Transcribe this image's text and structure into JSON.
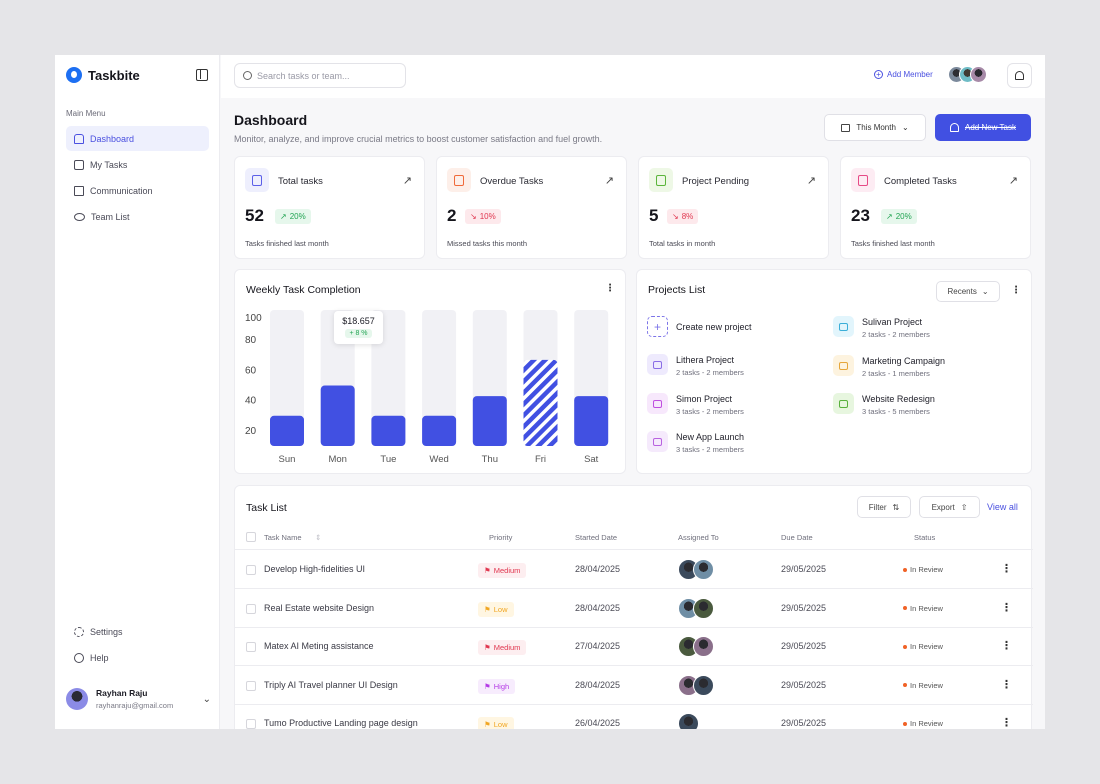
{
  "app": {
    "name": "Taskbite"
  },
  "sidebar": {
    "menu_label": "Main Menu",
    "items": [
      {
        "label": "Dashboard",
        "icon": "home-icon",
        "active": true
      },
      {
        "label": "My Tasks",
        "icon": "note-icon",
        "active": false
      },
      {
        "label": "Communication",
        "icon": "mail-icon",
        "active": false
      },
      {
        "label": "Team List",
        "icon": "users-icon",
        "active": false
      }
    ],
    "bottom_items": [
      {
        "label": "Settings",
        "icon": "gear-icon"
      },
      {
        "label": "Help",
        "icon": "help-icon"
      }
    ],
    "user": {
      "name": "Rayhan Raju",
      "email": "rayhanraju@gmail.com"
    }
  },
  "topbar": {
    "search_placeholder": "Search tasks or team...",
    "add_member_label": "Add Member"
  },
  "header": {
    "title": "Dashboard",
    "subtitle": "Monitor, analyze, and improve crucial metrics to boost customer satisfaction and fuel growth.",
    "range_label": "This Month",
    "add_task_label": "Add New Task"
  },
  "stats": [
    {
      "label": "Total tasks",
      "value": "52",
      "change": "20%",
      "trend": "up",
      "foot": "Tasks finished last month",
      "icon_color": "#5b5fe8",
      "icon_bg": "#eeeffd"
    },
    {
      "label": "Overdue Tasks",
      "value": "2",
      "change": "10%",
      "trend": "down",
      "foot": "Missed tasks this month",
      "icon_color": "#f06a3a",
      "icon_bg": "#fdefe9"
    },
    {
      "label": "Project Pending",
      "value": "5",
      "change": "8%",
      "trend": "down",
      "foot": "Total tasks in month",
      "icon_color": "#5bb53b",
      "icon_bg": "#eef8e6"
    },
    {
      "label": "Completed Tasks",
      "value": "23",
      "change": "20%",
      "trend": "up",
      "foot": "Tasks finished last month",
      "icon_color": "#e64a86",
      "icon_bg": "#fdecf3"
    }
  ],
  "chart_data": {
    "type": "bar",
    "title": "Weekly Task Completion",
    "categories": [
      "Sun",
      "Mon",
      "Tue",
      "Wed",
      "Thu",
      "Fri",
      "Sat"
    ],
    "values": [
      30,
      50,
      30,
      30,
      43,
      67,
      43
    ],
    "yticks": [
      100,
      80,
      60,
      40,
      20
    ],
    "ylim": [
      10,
      100
    ],
    "highlight_index": 5,
    "tooltip": {
      "value": "$18.657",
      "change": "+ 8 %"
    },
    "bar_color": "#4150e2",
    "track_color": "#f1f1f5"
  },
  "projects": {
    "title": "Projects List",
    "filter_label": "Recents",
    "create_label": "Create new project",
    "items": [
      {
        "name": "Lithera Project",
        "meta": "2 tasks - 2 members",
        "color": "#8a6de6",
        "bg": "#eeeafd"
      },
      {
        "name": "Simon Project",
        "meta": "3 tasks - 2 members",
        "color": "#c04fe0",
        "bg": "#f7e8fc"
      },
      {
        "name": "New App Launch",
        "meta": "3 tasks - 2 members",
        "color": "#b862e0",
        "bg": "#f5eafc"
      },
      {
        "name": "Sulivan Project",
        "meta": "2 tasks - 2 members",
        "color": "#3aaed8",
        "bg": "#e2f5fc"
      },
      {
        "name": "Marketing Campaign",
        "meta": "2  tasks - 1 members",
        "color": "#e6a63a",
        "bg": "#fdf3df"
      },
      {
        "name": "Website Redesign",
        "meta": "3 tasks - 5 members",
        "color": "#58b03c",
        "bg": "#e7f6df"
      }
    ]
  },
  "tasks": {
    "title": "Task List",
    "filter_label": "Filter",
    "export_label": "Export",
    "view_all_label": "View all",
    "columns": [
      "Task Name",
      "Priority",
      "Started Date",
      "Assigned To",
      "Due Date",
      "Status"
    ],
    "rows": [
      {
        "name": "Develop High-fidelities UI",
        "priority": "Medium",
        "started": "28/04/2025",
        "due": "29/05/2025",
        "status": "In Review",
        "avatars": 2
      },
      {
        "name": "Real Estate website Design",
        "priority": "Low",
        "started": "28/04/2025",
        "due": "29/05/2025",
        "status": "In Review",
        "avatars": 2
      },
      {
        "name": "Matex AI Meting assistance",
        "priority": "Medium",
        "started": "27/04/2025",
        "due": "29/05/2025",
        "status": "In Review",
        "avatars": 2
      },
      {
        "name": "Triply AI Travel planner UI Design",
        "priority": "High",
        "started": "28/04/2025",
        "due": "29/05/2025",
        "status": "In Review",
        "avatars": 2
      },
      {
        "name": "Tumo Productive Landing page design",
        "priority": "Low",
        "started": "26/04/2025",
        "due": "29/05/2025",
        "status": "In Review",
        "avatars": 1
      }
    ]
  }
}
